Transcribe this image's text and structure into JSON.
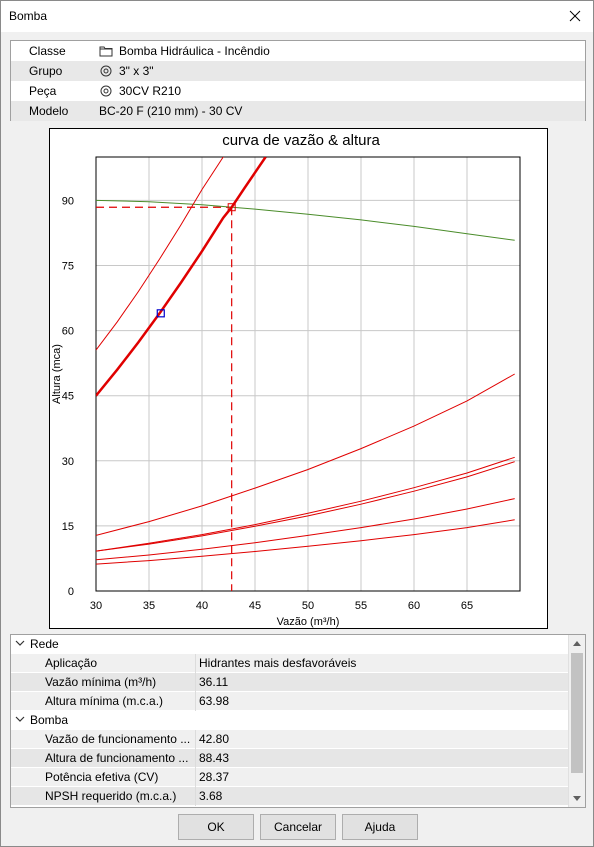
{
  "window": {
    "title": "Bomba"
  },
  "props": [
    {
      "label": "Classe",
      "value": "Bomba Hidráulica - Incêndio",
      "icon": "folder-icon"
    },
    {
      "label": "Grupo",
      "value": "3\" x 3\"",
      "icon": "target-icon"
    },
    {
      "label": "Peça",
      "value": "30CV R210",
      "icon": "target-icon"
    },
    {
      "label": "Modelo",
      "value": "BC-20 F (210 mm) - 30 CV",
      "icon": ""
    }
  ],
  "chart_data": {
    "type": "line",
    "title": "curva de vazão & altura",
    "xlabel": "Vazão (m³/h)",
    "ylabel": "Altura (mca)",
    "xlim": [
      30,
      70
    ],
    "ylim": [
      0,
      100
    ],
    "xticks": [
      "30",
      "35",
      "40",
      "45",
      "50",
      "55",
      "60",
      "65"
    ],
    "yticks": [
      "0",
      "15",
      "30",
      "45",
      "60",
      "75",
      "90"
    ],
    "colors": {
      "pump": "#4a8c2a",
      "network": "#e00000",
      "marker": "#0000cc",
      "grid": "#c8c8c8"
    },
    "series": [
      {
        "role": "pump-curve",
        "color": "#4a8c2a",
        "width": 1,
        "x": [
          30,
          35,
          40,
          45,
          50,
          55,
          60,
          65,
          69.5
        ],
        "y": [
          90.0,
          89.7,
          89.0,
          88.0,
          86.8,
          85.5,
          84.0,
          82.3,
          80.8
        ]
      },
      {
        "role": "system-curve-main",
        "color": "#e00000",
        "width": 2.5,
        "x": [
          30,
          32,
          34,
          36,
          38,
          40,
          42,
          42.8,
          44,
          46
        ],
        "y": [
          45.0,
          51.0,
          57.3,
          63.98,
          71.0,
          78.3,
          86.0,
          88.43,
          92.8,
          100.0
        ]
      },
      {
        "role": "system-curve",
        "color": "#e00000",
        "width": 1,
        "x": [
          30,
          32,
          34,
          36,
          38,
          40,
          42,
          44,
          46
        ],
        "y": [
          55.5,
          62.0,
          69.0,
          76.5,
          84.3,
          92.5,
          100.0,
          104.0,
          108.0
        ]
      },
      {
        "role": "system-curve",
        "color": "#e00000",
        "width": 1,
        "x": [
          30,
          35,
          40,
          45,
          50,
          55,
          60,
          65,
          69.5
        ],
        "y": [
          12.8,
          16.0,
          19.6,
          23.7,
          28.0,
          32.8,
          38.0,
          43.8,
          50.0
        ]
      },
      {
        "role": "system-curve",
        "color": "#e00000",
        "width": 1,
        "x": [
          30,
          35,
          40,
          45,
          50,
          55,
          60,
          65,
          69.5
        ],
        "y": [
          9.2,
          11.0,
          13.0,
          15.3,
          17.9,
          20.7,
          23.8,
          27.2,
          30.8
        ]
      },
      {
        "role": "system-curve",
        "color": "#e00000",
        "width": 1,
        "x": [
          30,
          35,
          40,
          45,
          50,
          55,
          60,
          65,
          69.5
        ],
        "y": [
          9.2,
          10.8,
          12.7,
          14.9,
          17.3,
          20.0,
          23.0,
          26.3,
          29.8
        ]
      },
      {
        "role": "system-curve",
        "color": "#e00000",
        "width": 1,
        "x": [
          30,
          35,
          40,
          45,
          50,
          55,
          60,
          65,
          69.5
        ],
        "y": [
          7.2,
          8.3,
          9.6,
          11.1,
          12.8,
          14.6,
          16.6,
          18.9,
          21.3
        ]
      },
      {
        "role": "system-curve",
        "color": "#e00000",
        "width": 1,
        "x": [
          30,
          35,
          40,
          45,
          50,
          55,
          60,
          65,
          69.5
        ],
        "y": [
          6.2,
          7.0,
          8.0,
          9.1,
          10.3,
          11.6,
          13.0,
          14.6,
          16.4
        ]
      }
    ],
    "operating_point": {
      "x": 42.8,
      "y": 88.43
    },
    "minimum_point": {
      "x": 36.11,
      "y": 63.98
    }
  },
  "grid": {
    "sections": [
      {
        "title": "Rede",
        "rows": [
          {
            "label": "Aplicação",
            "value": "Hidrantes mais desfavoráveis"
          },
          {
            "label": "Vazão mínima (m³/h)",
            "value": "36.11"
          },
          {
            "label": "Altura mínima (m.c.a.)",
            "value": "63.98"
          }
        ]
      },
      {
        "title": "Bomba",
        "rows": [
          {
            "label": "Vazão de funcionamento ...",
            "value": "42.80"
          },
          {
            "label": "Altura de funcionamento ...",
            "value": "88.43"
          },
          {
            "label": "Potência efetiva (CV)",
            "value": "28.37"
          },
          {
            "label": "NPSH requerido (m.c.a.)",
            "value": "3.68"
          }
        ]
      }
    ]
  },
  "buttons": {
    "ok": "OK",
    "cancel": "Cancelar",
    "help": "Ajuda"
  }
}
